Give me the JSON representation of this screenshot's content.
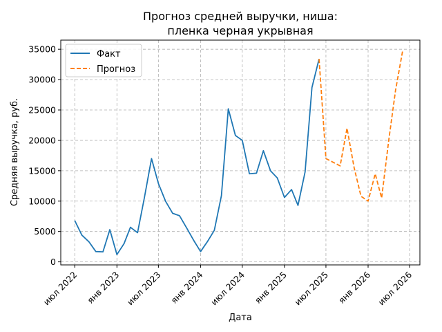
{
  "chart_data": {
    "type": "line",
    "title_line1": "Прогноз средней выручки, ниша:",
    "title_line2": "пленка черная укрывная",
    "xlabel": "Дата",
    "ylabel": "Средняя выручка, руб.",
    "ylim": [
      -500,
      36500
    ],
    "xlim": [
      "2022-05-01",
      "2026-08-15"
    ],
    "grid": true,
    "grid_style": "dashed",
    "legend_position": "upper-left",
    "x_ticks": [
      {
        "date": "2022-07-01",
        "label": "июл 2022"
      },
      {
        "date": "2023-01-01",
        "label": "янв 2023"
      },
      {
        "date": "2023-07-01",
        "label": "июл 2023"
      },
      {
        "date": "2024-01-01",
        "label": "янв 2024"
      },
      {
        "date": "2024-07-01",
        "label": "июл 2024"
      },
      {
        "date": "2025-01-01",
        "label": "янв 2025"
      },
      {
        "date": "2025-07-01",
        "label": "июл 2025"
      },
      {
        "date": "2026-01-01",
        "label": "янв 2026"
      },
      {
        "date": "2026-07-01",
        "label": "июл 2026"
      }
    ],
    "y_ticks": [
      {
        "value": 0,
        "label": "0"
      },
      {
        "value": 5000,
        "label": "5000"
      },
      {
        "value": 10000,
        "label": "10000"
      },
      {
        "value": 15000,
        "label": "15000"
      },
      {
        "value": 20000,
        "label": "20000"
      },
      {
        "value": 25000,
        "label": "25000"
      },
      {
        "value": 30000,
        "label": "30000"
      },
      {
        "value": 35000,
        "label": "35000"
      }
    ],
    "series": [
      {
        "name": "Факт",
        "color": "#1f77b4",
        "style": "solid",
        "points": [
          {
            "x": "2022-07-01",
            "y": 6800
          },
          {
            "x": "2022-08-01",
            "y": 4400
          },
          {
            "x": "2022-09-01",
            "y": 3300
          },
          {
            "x": "2022-10-01",
            "y": 1700
          },
          {
            "x": "2022-11-01",
            "y": 1650
          },
          {
            "x": "2022-12-01",
            "y": 5300
          },
          {
            "x": "2023-01-01",
            "y": 1200
          },
          {
            "x": "2023-02-01",
            "y": 3000
          },
          {
            "x": "2023-03-01",
            "y": 5700
          },
          {
            "x": "2023-04-01",
            "y": 4800
          },
          {
            "x": "2023-05-01",
            "y": 10600
          },
          {
            "x": "2023-06-01",
            "y": 17000
          },
          {
            "x": "2023-07-01",
            "y": 12900
          },
          {
            "x": "2023-08-01",
            "y": 10000
          },
          {
            "x": "2023-09-01",
            "y": 8000
          },
          {
            "x": "2023-10-01",
            "y": 7600
          },
          {
            "x": "2023-11-01",
            "y": 5600
          },
          {
            "x": "2023-12-01",
            "y": 3600
          },
          {
            "x": "2024-01-01",
            "y": 1700
          },
          {
            "x": "2024-02-01",
            "y": 3400
          },
          {
            "x": "2024-03-01",
            "y": 5200
          },
          {
            "x": "2024-04-01",
            "y": 10900
          },
          {
            "x": "2024-05-01",
            "y": 25200
          },
          {
            "x": "2024-06-01",
            "y": 20800
          },
          {
            "x": "2024-07-01",
            "y": 20000
          },
          {
            "x": "2024-08-01",
            "y": 14500
          },
          {
            "x": "2024-09-01",
            "y": 14600
          },
          {
            "x": "2024-10-01",
            "y": 18300
          },
          {
            "x": "2024-11-01",
            "y": 15000
          },
          {
            "x": "2024-12-01",
            "y": 13800
          },
          {
            "x": "2025-01-01",
            "y": 10600
          },
          {
            "x": "2025-02-01",
            "y": 11900
          },
          {
            "x": "2025-03-01",
            "y": 9300
          },
          {
            "x": "2025-04-01",
            "y": 14800
          },
          {
            "x": "2025-05-01",
            "y": 28700
          },
          {
            "x": "2025-06-01",
            "y": 33400
          }
        ]
      },
      {
        "name": "Прогноз",
        "color": "#ff7f0e",
        "style": "dashed",
        "points": [
          {
            "x": "2025-06-01",
            "y": 33400
          },
          {
            "x": "2025-07-01",
            "y": 17000
          },
          {
            "x": "2025-08-01",
            "y": 16400
          },
          {
            "x": "2025-09-01",
            "y": 15800
          },
          {
            "x": "2025-10-01",
            "y": 22000
          },
          {
            "x": "2025-11-01",
            "y": 15500
          },
          {
            "x": "2025-12-01",
            "y": 10800
          },
          {
            "x": "2026-01-01",
            "y": 10000
          },
          {
            "x": "2026-02-01",
            "y": 14500
          },
          {
            "x": "2026-03-01",
            "y": 10500
          },
          {
            "x": "2026-04-01",
            "y": 20000
          },
          {
            "x": "2026-05-01",
            "y": 28300
          },
          {
            "x": "2026-06-01",
            "y": 34800
          }
        ]
      }
    ]
  }
}
